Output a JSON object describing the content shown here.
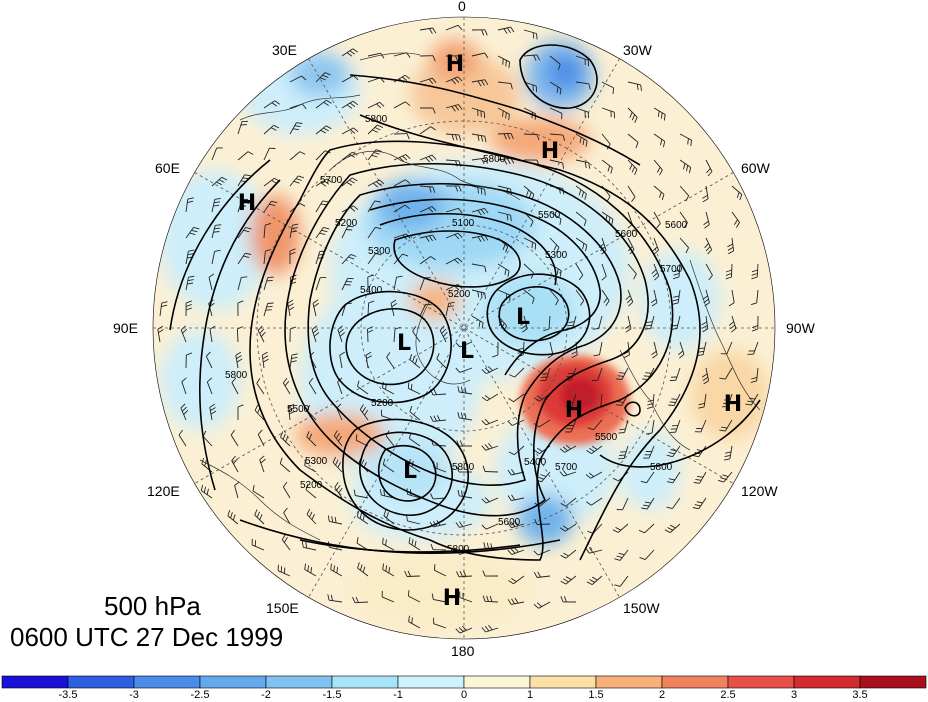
{
  "map": {
    "projection": "north-polar-stereographic",
    "level_label": "500 hPa",
    "time_label": "0600 UTC 27 Dec 1999",
    "longitude_labels": [
      {
        "text": "0",
        "lon": 0
      },
      {
        "text": "30W",
        "lon": -30
      },
      {
        "text": "60W",
        "lon": -60
      },
      {
        "text": "90W",
        "lon": -90
      },
      {
        "text": "120W",
        "lon": -120
      },
      {
        "text": "150W",
        "lon": -150
      },
      {
        "text": "180",
        "lon": 180
      },
      {
        "text": "150E",
        "lon": 150
      },
      {
        "text": "120E",
        "lon": 120
      },
      {
        "text": "90E",
        "lon": 90
      },
      {
        "text": "60E",
        "lon": 60
      },
      {
        "text": "30E",
        "lon": 30
      }
    ],
    "contour_labels": [
      "5800",
      "5800",
      "5700",
      "5500",
      "5600",
      "5600",
      "5700",
      "5300",
      "5100",
      "5200",
      "5400",
      "5300",
      "5200",
      "5800",
      "5500",
      "5200",
      "5300",
      "5400",
      "5700",
      "5800",
      "5600",
      "5800",
      "5200",
      "5500",
      "5800"
    ],
    "pressure_centers": [
      "H",
      "H",
      "H",
      "H",
      "H",
      "H",
      "L",
      "L",
      "L",
      "L"
    ]
  },
  "colorbar": {
    "ticks": [
      "-3.5",
      "-3",
      "-2.5",
      "-2",
      "-1.5",
      "-1",
      "0",
      "1",
      "1.5",
      "2",
      "2.5",
      "3",
      "3.5"
    ],
    "colors": [
      "#1a10d8",
      "#2d5fe0",
      "#4a8ce8",
      "#64a8ee",
      "#82c2f2",
      "#a8e4f8",
      "#cdf2fb",
      "#fbf6d6",
      "#fbe1a8",
      "#f7b07a",
      "#f0825c",
      "#e65046",
      "#d22b30",
      "#a8101e"
    ]
  }
}
